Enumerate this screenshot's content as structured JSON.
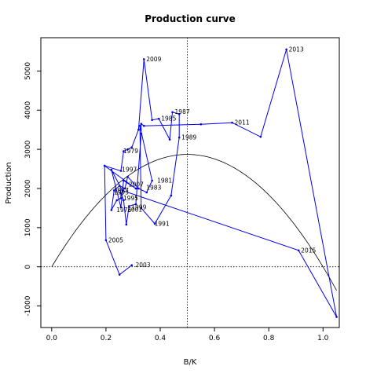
{
  "chart_data": {
    "type": "line",
    "title": "Production curve",
    "xlabel": "B/K",
    "ylabel": "Production",
    "xlim": [
      -0.04,
      1.06
    ],
    "ylim": [
      -1550,
      5850
    ],
    "xticks": [
      0.0,
      0.2,
      0.4,
      0.6,
      0.8,
      1.0
    ],
    "xtick_labels": [
      "0.0",
      "0.2",
      "0.4",
      "0.6",
      "0.8",
      "1.0"
    ],
    "yticks": [
      -1000,
      0,
      1000,
      2000,
      3000,
      4000,
      5000
    ],
    "ytick_labels": [
      "-1000",
      "0",
      "1000",
      "2000",
      "3000",
      "4000",
      "5000"
    ],
    "reference_lines": {
      "vertical_x": 0.5,
      "horizontal_y": 0
    },
    "curve": {
      "x_start": 0.0,
      "x_end": 1.05,
      "peak_x": 0.5,
      "peak_y": 2870
    },
    "series_color": "#0000ee",
    "curve_color": "#000000",
    "series": [
      {
        "x": [
          0.195,
          0.255,
          0.265,
          0.28,
          0.295,
          0.32,
          0.34,
          0.37,
          0.395,
          0.435,
          0.445,
          0.47,
          0.47,
          0.44,
          0.38,
          0.33,
          0.325,
          0.37,
          0.35,
          0.32,
          0.28,
          0.27,
          0.25,
          0.23,
          0.22,
          0.24,
          0.255,
          0.255,
          0.265,
          0.275,
          0.285,
          0.31,
          0.33,
          0.33,
          0.34,
          0.55,
          0.665,
          0.77,
          0.865,
          1.05,
          0.91,
          0.26,
          0.22,
          0.255,
          0.265,
          0.31,
          0.195,
          0.2,
          0.25,
          0.295
        ],
        "y": [
          2580,
          2450,
          2950,
          3000,
          3050,
          3500,
          5300,
          3750,
          3780,
          3250,
          3950,
          3900,
          3300,
          1820,
          1100,
          1500,
          3600,
          2200,
          1900,
          2000,
          2300,
          2000,
          2070,
          1950,
          1450,
          1700,
          1750,
          1880,
          1700,
          1080,
          1550,
          1600,
          3400,
          3650,
          3600,
          3640,
          3680,
          3320,
          5550,
          -1280,
          420,
          1950,
          2480,
          1520,
          2200,
          2000,
          2580,
          680,
          -200,
          40
        ]
      }
    ],
    "labels": [
      {
        "text": "2013",
        "x": 0.865,
        "y": 5550
      },
      {
        "text": "2009",
        "x": 0.34,
        "y": 5300
      },
      {
        "text": "1987",
        "x": 0.445,
        "y": 3950
      },
      {
        "text": "1985",
        "x": 0.395,
        "y": 3780
      },
      {
        "text": "2011",
        "x": 0.665,
        "y": 3680
      },
      {
        "text": "1989",
        "x": 0.47,
        "y": 3300
      },
      {
        "text": "1979",
        "x": 0.255,
        "y": 2950
      },
      {
        "text": "1997",
        "x": 0.25,
        "y": 2480
      },
      {
        "text": "1981",
        "x": 0.38,
        "y": 2200
      },
      {
        "text": "2007",
        "x": 0.275,
        "y": 2100
      },
      {
        "text": "1983",
        "x": 0.34,
        "y": 2020
      },
      {
        "text": "1977",
        "x": 0.22,
        "y": 1950
      },
      {
        "text": "1993",
        "x": 0.22,
        "y": 1900
      },
      {
        "text": "1995",
        "x": 0.255,
        "y": 1750
      },
      {
        "text": "1999",
        "x": 0.285,
        "y": 1520
      },
      {
        "text": "1991",
        "x": 0.37,
        "y": 1100
      },
      {
        "text": "1975",
        "x": 0.23,
        "y": 1450
      },
      {
        "text": "2001",
        "x": 0.27,
        "y": 1460
      },
      {
        "text": "2005",
        "x": 0.2,
        "y": 680
      },
      {
        "text": "2015",
        "x": 0.91,
        "y": 420
      },
      {
        "text": "2003",
        "x": 0.3,
        "y": 40
      }
    ]
  }
}
